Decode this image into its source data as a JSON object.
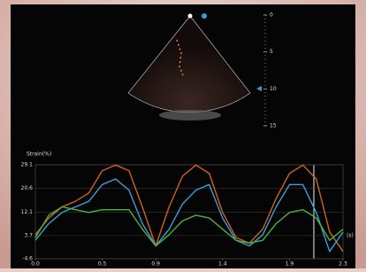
{
  "ultrasound": {
    "depth_ticks": [
      0,
      5,
      10,
      15
    ]
  },
  "chart_data": {
    "type": "line",
    "title": "Strain(%)",
    "x_label": "(s)",
    "x": [
      0,
      0.1,
      0.2,
      0.3,
      0.4,
      0.5,
      0.6,
      0.7,
      0.8,
      0.9,
      1.0,
      1.1,
      1.2,
      1.3,
      1.4,
      1.5,
      1.6,
      1.7,
      1.8,
      1.9,
      2.0,
      2.1,
      2.2,
      2.3
    ],
    "series": [
      {
        "color": "#d0601e",
        "values": [
          4,
          10,
          14,
          16,
          19,
          27,
          29,
          27,
          14,
          0,
          14,
          25,
          29,
          26,
          12,
          3,
          1,
          6,
          17,
          26,
          29,
          24,
          5,
          -2
        ]
      },
      {
        "color": "#3a9fd8",
        "values": [
          2,
          8,
          12,
          14,
          16,
          22,
          24,
          20,
          8,
          0,
          6,
          15,
          20,
          22,
          10,
          2,
          0,
          4,
          14,
          22,
          22,
          12,
          -2,
          5
        ]
      },
      {
        "color": "#4cb33a",
        "values": [
          3,
          11,
          14,
          13,
          12,
          13,
          13,
          13,
          6,
          0,
          4,
          9,
          11,
          10,
          6,
          2,
          1,
          2,
          8,
          12,
          13,
          10,
          2,
          6
        ]
      }
    ],
    "xlim": [
      0,
      2.3
    ],
    "xticks": [
      {
        "value": 0,
        "label": "0.0"
      },
      0.5,
      0.9,
      1.4,
      1.9,
      2.3
    ],
    "ylim": [
      -4.6,
      29.1
    ],
    "yticks": [
      -4.6,
      3.7,
      12.1,
      20.6,
      29.1
    ],
    "grid": true
  }
}
